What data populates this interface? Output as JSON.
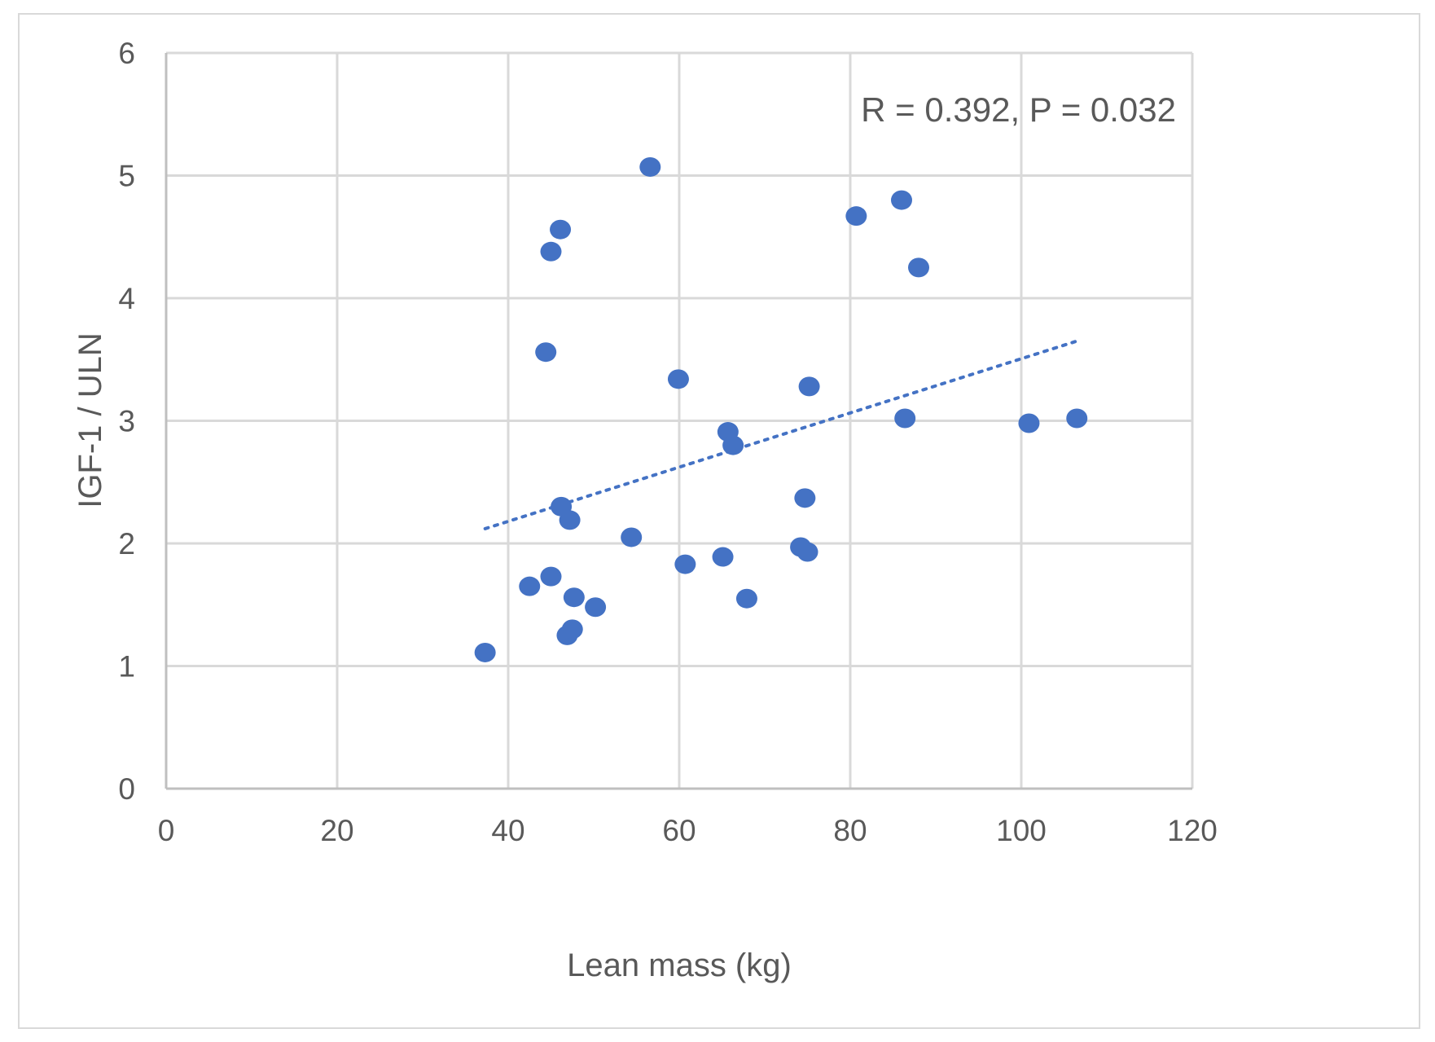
{
  "chart_data": {
    "type": "scatter",
    "title": "",
    "xlabel": "Lean mass (kg)",
    "ylabel": "IGF-1 / ULN",
    "xlim": [
      0,
      120
    ],
    "ylim": [
      0,
      6
    ],
    "x_ticks": [
      "0",
      "20",
      "40",
      "60",
      "80",
      "100",
      "120"
    ],
    "y_ticks": [
      "0",
      "1",
      "2",
      "3",
      "4",
      "5",
      "6"
    ],
    "grid": true,
    "legend": "none",
    "annotation": "R = 0.392, P  =  0.032",
    "marker_color": "#4472c4",
    "trendline": {
      "style": "dotted",
      "color": "#4472c4",
      "x": [
        37.3,
        106.5
      ],
      "y": [
        2.12,
        3.65
      ]
    },
    "series": [
      {
        "x": [
          37.3,
          42.5,
          45.0,
          44.4,
          45.0,
          46.1,
          46.2,
          47.2,
          47.7,
          46.9,
          47.5,
          50.2,
          54.4,
          56.6,
          59.9,
          60.7,
          65.1,
          65.7,
          66.3,
          67.9,
          74.2,
          74.7,
          75.0,
          75.2,
          80.7,
          86.0,
          86.4,
          88.0,
          100.9,
          106.5
        ],
        "y": [
          1.11,
          1.65,
          1.73,
          3.56,
          4.38,
          4.56,
          2.3,
          2.19,
          1.56,
          1.25,
          1.3,
          1.48,
          2.05,
          5.07,
          3.34,
          1.83,
          1.89,
          2.91,
          2.8,
          1.55,
          1.97,
          2.37,
          1.93,
          3.28,
          4.67,
          4.8,
          3.02,
          4.25,
          2.98,
          3.02
        ]
      }
    ]
  }
}
